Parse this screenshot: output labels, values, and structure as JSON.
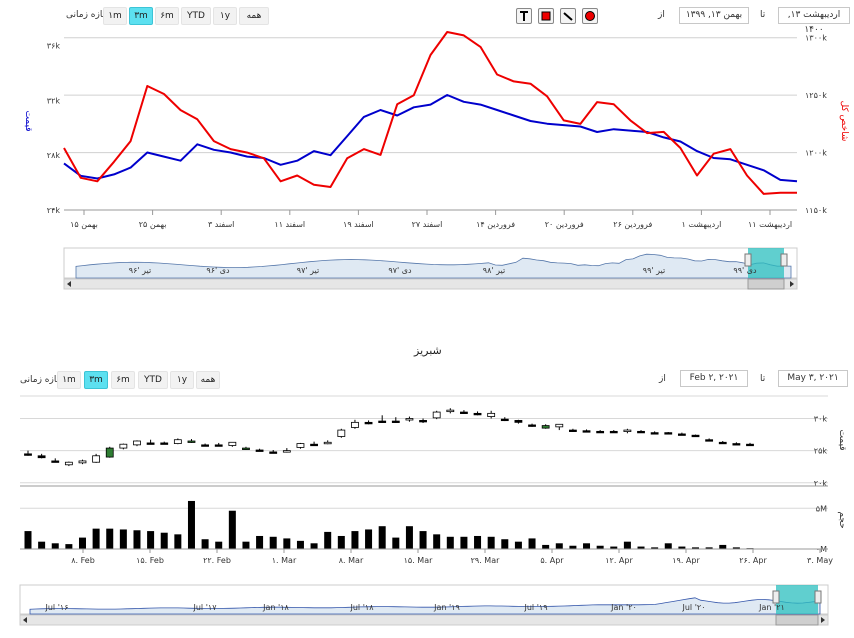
{
  "chart1": {
    "range_selector": {
      "label": "بازه زمانی",
      "buttons": [
        "۱m",
        "۳m",
        "۶m",
        "YTD",
        "۱y",
        "همه"
      ],
      "selected": 1,
      "from_label": "از",
      "to_label": "تا",
      "from_value": "بهمن ۱۳, ۱۳۹۹",
      "to_value": "اردیبهشت ۱۳, ۱۴۰۰"
    },
    "tools": [
      "text-tool-icon",
      "rectangle-tool-icon",
      "line-tool-icon",
      "circle-tool-icon"
    ],
    "chart_data": {
      "type": "line",
      "x_ticks": [
        "بهمن ۱۵",
        "بهمن ۲۵",
        "اسفند ۳",
        "اسفند ۱۱",
        "اسفند ۱۹",
        "اسفند ۲۷",
        "فروردین ۱۴",
        "فروردین ۲۰",
        "فروردین ۲۶",
        "اردیبهشت ۱",
        "اردیبهشت ۱۱"
      ],
      "y_left": {
        "label": "قیمت",
        "ticks": [
          "۲۴k",
          "۲۸k",
          "۳۲k",
          "۳۶k"
        ],
        "range": [
          24000,
          37000
        ]
      },
      "y_right": {
        "label": "شاخص کل",
        "ticks": [
          "۱۱۵۰k",
          "۱۲۰۰k",
          "۱۲۵۰k",
          "۱۳۰۰k"
        ],
        "range": [
          1150000,
          1305000
        ]
      },
      "series": [
        {
          "name": "قیمت",
          "color": "#0000cc",
          "axis": "left",
          "values": [
            27400,
            26500,
            26300,
            26600,
            27100,
            28200,
            27900,
            27600,
            28800,
            28400,
            28200,
            27900,
            27800,
            27300,
            27600,
            28300,
            28000,
            29400,
            30800,
            31300,
            30900,
            31500,
            31700,
            32400,
            31900,
            31700,
            31300,
            30900,
            30500,
            30300,
            30200,
            30100,
            29700,
            29900,
            29800,
            29700,
            29300,
            29000,
            28300,
            27800,
            27700,
            27300,
            26900,
            26200,
            26100
          ]
        },
        {
          "name": "شاخص کل",
          "color": "#ee0000",
          "axis": "right",
          "values": [
            1204000,
            1178000,
            1175000,
            1192000,
            1210000,
            1258000,
            1251000,
            1237000,
            1229000,
            1210000,
            1203000,
            1200000,
            1195000,
            1175000,
            1180000,
            1172000,
            1170000,
            1195000,
            1203000,
            1198000,
            1242000,
            1250000,
            1285000,
            1305000,
            1302000,
            1292000,
            1268000,
            1262000,
            1260000,
            1249000,
            1228000,
            1225000,
            1244000,
            1242000,
            1228000,
            1217000,
            1218000,
            1204000,
            1180000,
            1199000,
            1203000,
            1180000,
            1164000,
            1165000,
            1165000
          ]
        }
      ],
      "navigator_ticks": [
        "تیر '۹۶",
        "دی '۹۶",
        "تیر '۹۷",
        "دی '۹۷",
        "تیر '۹۸",
        "تیر '۹۹",
        "دی '۹۹"
      ]
    }
  },
  "chart2": {
    "title": "شبریز",
    "range_selector": {
      "label": "بازه زمانی",
      "buttons": [
        "۱m",
        "۳m",
        "۶m",
        "YTD",
        "۱y",
        "همه"
      ],
      "selected": 1,
      "from_label": "از",
      "to_label": "تا",
      "from_value": "Feb ۲, ۲۰۲۱",
      "to_value": "May ۳, ۲۰۲۱"
    },
    "chart_data": {
      "type": "candlestick",
      "x_ticks": [
        "۸. Feb",
        "۱۵. Feb",
        "۲۲. Feb",
        "۱. Mar",
        "۸. Mar",
        "۱۵. Mar",
        "۲۹. Mar",
        "۵. Apr",
        "۱۲. Apr",
        "۱۹. Apr",
        "۲۶. Apr",
        "۳. May"
      ],
      "y_price": {
        "label": "قیمت",
        "ticks": [
          "۲۰k",
          "۲۵k",
          "۳۰k"
        ],
        "range": [
          19500,
          33500
        ]
      },
      "y_volume": {
        "label": "حجم",
        "ticks": [
          "۰M",
          "۵M"
        ],
        "range": [
          0,
          7000000
        ]
      },
      "candles": [
        [
          24500,
          25000,
          24200,
          24500
        ],
        [
          24200,
          24500,
          23800,
          23900
        ],
        [
          23400,
          23800,
          23200,
          23400
        ],
        [
          22800,
          23300,
          22600,
          23200
        ],
        [
          23100,
          23600,
          22900,
          23400
        ],
        [
          23200,
          24500,
          23100,
          24200
        ],
        [
          24000,
          25600,
          23900,
          25400
        ],
        [
          25400,
          26100,
          25200,
          26000
        ],
        [
          25900,
          26600,
          25700,
          26500
        ],
        [
          26200,
          26700,
          26000,
          26200
        ],
        [
          26200,
          26400,
          26000,
          26100
        ],
        [
          26100,
          26900,
          26000,
          26700
        ],
        [
          26500,
          26800,
          26200,
          26500
        ],
        [
          25900,
          26100,
          25700,
          25900
        ],
        [
          25900,
          26200,
          25700,
          25800
        ],
        [
          25800,
          26200,
          25600,
          26300
        ],
        [
          25300,
          25600,
          25100,
          25400
        ],
        [
          25100,
          25300,
          24900,
          25100
        ],
        [
          24800,
          25100,
          24600,
          24700
        ],
        [
          24900,
          25400,
          24700,
          25000
        ],
        [
          25500,
          26200,
          25300,
          26100
        ],
        [
          26000,
          26400,
          25800,
          25900
        ],
        [
          26200,
          26600,
          26000,
          26300
        ],
        [
          27200,
          28400,
          27000,
          28200
        ],
        [
          28600,
          29800,
          28400,
          29400
        ],
        [
          29400,
          29700,
          29100,
          29400
        ],
        [
          29600,
          30500,
          29300,
          29600
        ],
        [
          29600,
          30200,
          29300,
          29600
        ],
        [
          29800,
          30300,
          29500,
          30000
        ],
        [
          29700,
          30000,
          29300,
          29500
        ],
        [
          30100,
          31200,
          29900,
          31000
        ],
        [
          31200,
          31600,
          30800,
          31300
        ],
        [
          31000,
          31300,
          30700,
          31000
        ],
        [
          30800,
          31100,
          30500,
          30800
        ],
        [
          30300,
          31200,
          30000,
          30800
        ],
        [
          29900,
          30200,
          29600,
          29900
        ],
        [
          29700,
          29800,
          29200,
          29400
        ],
        [
          29000,
          29200,
          28700,
          29000
        ],
        [
          28900,
          29100,
          28400,
          28500
        ],
        [
          28700,
          29000,
          28200,
          29100
        ],
        [
          28200,
          28400,
          27900,
          28200
        ],
        [
          28100,
          28300,
          27900,
          28100
        ],
        [
          28000,
          28200,
          27800,
          28000
        ],
        [
          28000,
          28200,
          27800,
          28000
        ],
        [
          28000,
          28400,
          27700,
          28200
        ],
        [
          28000,
          28200,
          27800,
          28000
        ],
        [
          27800,
          28000,
          27600,
          27800
        ],
        [
          27800,
          27900,
          27600,
          27800
        ],
        [
          27600,
          27800,
          27400,
          27600
        ],
        [
          27400,
          27500,
          27300,
          27400
        ],
        [
          26700,
          26900,
          26500,
          26700
        ],
        [
          26300,
          26500,
          26100,
          26300
        ],
        [
          26100,
          26300,
          25900,
          26100
        ],
        [
          26000,
          26200,
          25800,
          26000
        ]
      ],
      "volumes": [
        2200000,
        900000,
        700000,
        600000,
        1400000,
        2500000,
        2500000,
        2400000,
        2300000,
        2200000,
        2000000,
        1800000,
        5900000,
        1200000,
        900000,
        4700000,
        900000,
        1600000,
        1500000,
        1300000,
        1000000,
        700000,
        2100000,
        1600000,
        2200000,
        2400000,
        2800000,
        1400000,
        2800000,
        2200000,
        1800000,
        1500000,
        1500000,
        1600000,
        1500000,
        1200000,
        900000,
        1300000,
        500000,
        700000,
        400000,
        700000,
        400000,
        300000,
        900000,
        300000,
        200000,
        700000,
        300000,
        200000,
        200000,
        500000,
        200000,
        100000
      ],
      "navigator_ticks": [
        "Jul '۱۶",
        "Jul '۱۷",
        "Jan '۱۸",
        "Jul '۱۸",
        "Jan '۱۹",
        "Jul '۱۹",
        "Jan '۲۰",
        "Jul '۲۰",
        "Jan '۲۱"
      ]
    }
  }
}
